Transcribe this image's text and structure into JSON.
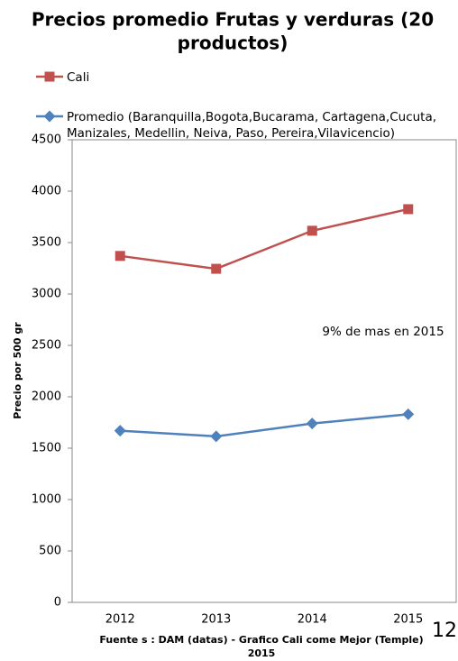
{
  "chart_data": {
    "type": "line",
    "title": [
      "Precios promedio Frutas y verduras (20",
      "productos)"
    ],
    "y_label": "Precio por 500 gr",
    "categories": [
      "2012",
      "2013",
      "2014",
      "2015"
    ],
    "series": [
      {
        "name": "Cali",
        "color": "#c0504d",
        "marker": "square",
        "values": [
          3370,
          3245,
          3615,
          3825
        ]
      },
      {
        "name": "Promedio (Baranquilla,Bogota,Bucarama, Cartagena,Cucuta, Manizales, Medellin, Neiva, Paso, Pereira,Vilavicencio)",
        "color": "#4f81bd",
        "marker": "diamond",
        "values": [
          1670,
          1615,
          1740,
          1830
        ]
      }
    ],
    "ylim": [
      0,
      4500
    ],
    "yticks": [
      0,
      500,
      1000,
      1500,
      2000,
      2500,
      3000,
      3500,
      4000,
      4500
    ],
    "grid": false,
    "annotation": "9% de mas en 2015",
    "source": [
      "Fuente s : DAM (datas) - Grafico  Cali come Mejor (Temple)",
      "2015"
    ],
    "page_number": "12"
  }
}
